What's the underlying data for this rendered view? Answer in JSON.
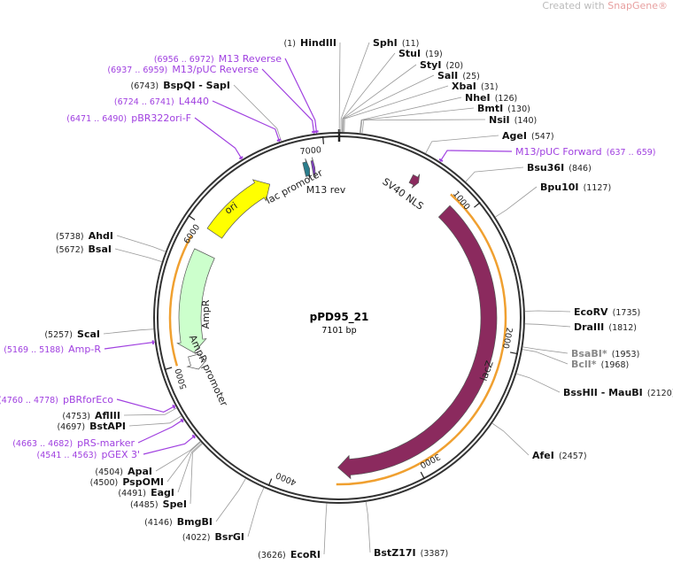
{
  "credit": {
    "prefix": "Created with ",
    "brand": "SnapGene®"
  },
  "plasmid": {
    "name": "pPD95_21",
    "length_label": "7101 bp",
    "length": 7101
  },
  "ticks": [
    "1000",
    "2000",
    "3000",
    "4000",
    "5000",
    "6000",
    "7000"
  ],
  "colors": {
    "lacZ": "#8b2a5e",
    "ori": "#ffff00",
    "AmpR": "#ccffcc",
    "primer": "#a040e0",
    "orange": "#f0a030",
    "promoter": "#2a7d8c"
  },
  "enzymes": [
    {
      "name": "HindIII",
      "pos": "(1)",
      "bp": 1
    },
    {
      "name": "SphI",
      "pos": "(11)",
      "bp": 11
    },
    {
      "name": "StuI",
      "pos": "(19)",
      "bp": 19
    },
    {
      "name": "StyI",
      "pos": "(20)",
      "bp": 20
    },
    {
      "name": "SalI",
      "pos": "(25)",
      "bp": 25
    },
    {
      "name": "XbaI",
      "pos": "(31)",
      "bp": 31
    },
    {
      "name": "NheI",
      "pos": "(126)",
      "bp": 126
    },
    {
      "name": "BmtI",
      "pos": "(130)",
      "bp": 130
    },
    {
      "name": "NsiI",
      "pos": "(140)",
      "bp": 140
    },
    {
      "name": "AgeI",
      "pos": "(547)",
      "bp": 547
    },
    {
      "name": "Bsu36I",
      "pos": "(846)",
      "bp": 846
    },
    {
      "name": "Bpu10I",
      "pos": "(1127)",
      "bp": 1127
    },
    {
      "name": "EcoRV",
      "pos": "(1735)",
      "bp": 1735
    },
    {
      "name": "DraIII",
      "pos": "(1812)",
      "bp": 1812
    },
    {
      "name": "BsaBI*",
      "pos": "(1953)",
      "bp": 1953,
      "gray": true
    },
    {
      "name": "BclI*",
      "pos": "(1968)",
      "bp": 1968,
      "gray": true
    },
    {
      "name": "BssHII - MauBI",
      "pos": "(2120)",
      "bp": 2120
    },
    {
      "name": "AfeI",
      "pos": "(2457)",
      "bp": 2457
    },
    {
      "name": "BstZ17I",
      "pos": "(3387)",
      "bp": 3387
    },
    {
      "name": "EcoRI",
      "pos": "(3626)",
      "bp": 3626
    },
    {
      "name": "BsrGI",
      "pos": "(4022)",
      "bp": 4022
    },
    {
      "name": "BmgBI",
      "pos": "(4146)",
      "bp": 4146
    },
    {
      "name": "SpeI",
      "pos": "(4485)",
      "bp": 4485
    },
    {
      "name": "EagI",
      "pos": "(4491)",
      "bp": 4491
    },
    {
      "name": "PspOMI",
      "pos": "(4500)",
      "bp": 4500
    },
    {
      "name": "ApaI",
      "pos": "(4504)",
      "bp": 4504
    },
    {
      "name": "BstAPI",
      "pos": "(4697)",
      "bp": 4697
    },
    {
      "name": "AflIII",
      "pos": "(4753)",
      "bp": 4753
    },
    {
      "name": "ScaI",
      "pos": "(5257)",
      "bp": 5257
    },
    {
      "name": "BsaI",
      "pos": "(5672)",
      "bp": 5672
    },
    {
      "name": "AhdI",
      "pos": "(5738)",
      "bp": 5738
    },
    {
      "name": "BspQI - SapI",
      "pos": "(6743)",
      "bp": 6743
    }
  ],
  "primers": [
    {
      "name": "M13 Reverse",
      "pos": "(6956 .. 6972)",
      "bp": 6964
    },
    {
      "name": "M13/pUC Reverse",
      "pos": "(6937 .. 6959)",
      "bp": 6948
    },
    {
      "name": "L4440",
      "pos": "(6724 .. 6741)",
      "bp": 6732
    },
    {
      "name": "pBR322ori-F",
      "pos": "(6471 .. 6490)",
      "bp": 6480
    },
    {
      "name": "M13/pUC Forward",
      "pos": "(637 .. 659)",
      "bp": 648
    },
    {
      "name": "Amp-R",
      "pos": "(5169 .. 5188)",
      "bp": 5178
    },
    {
      "name": "pBRforEco",
      "pos": "(4760 .. 4778)",
      "bp": 4769
    },
    {
      "name": "pRS-marker",
      "pos": "(4663 .. 4682)",
      "bp": 4672
    },
    {
      "name": "pGEX 3'",
      "pos": "(4541 .. 4563)",
      "bp": 4552
    }
  ],
  "features": [
    {
      "name": "lacZ",
      "start": 880,
      "end": 3560,
      "dir": "cw",
      "color": "#8b2a5e"
    },
    {
      "name": "SV40 NLS",
      "start": 540,
      "end": 600,
      "dir": "cw",
      "color": "#8b2a5e"
    },
    {
      "name": "ori",
      "start": 6000,
      "end": 6560,
      "dir": "cw",
      "color": "#ffff00"
    },
    {
      "name": "AmpR",
      "start": 5060,
      "end": 5830,
      "dir": "ccw",
      "color": "#ccffcc"
    },
    {
      "name": "AmpR promoter",
      "start": 4930,
      "end": 5040,
      "dir": "ccw",
      "color": "#ffffff"
    },
    {
      "name": "lac promoter",
      "start": 6840,
      "end": 6880,
      "dir": "cw",
      "color": "#2a7d8c"
    },
    {
      "name": "M13 rev",
      "start": 6900,
      "end": 6920,
      "dir": "cw",
      "color": "#8040c0"
    }
  ]
}
